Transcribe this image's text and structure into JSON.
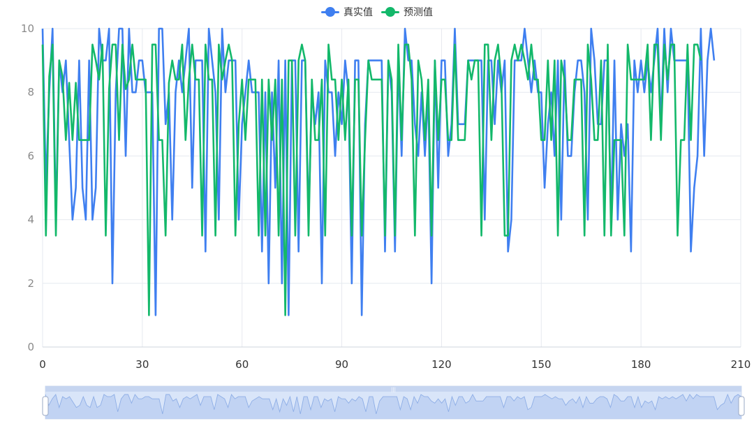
{
  "colors": {
    "actual": "#3f7ff0",
    "predicted": "#13b86a",
    "grid": "#e6e9ef",
    "axis_text": "#8a8a8a"
  },
  "legend": [
    {
      "label": "真实值",
      "color": "#3f7ff0"
    },
    {
      "label": "预测值",
      "color": "#13b86a"
    }
  ],
  "chart_data": {
    "type": "line",
    "xlim": [
      0,
      210
    ],
    "ylim": [
      0,
      10
    ],
    "xticks": [
      0,
      30,
      60,
      90,
      120,
      150,
      180,
      210
    ],
    "yticks": [
      0,
      2,
      4,
      6,
      8,
      10
    ],
    "grid": true,
    "legend_position": "top-center",
    "datazoom": {
      "start": 0,
      "end": 100
    },
    "series": [
      {
        "name": "真实值",
        "values": [
          10,
          5,
          8,
          10,
          4,
          9,
          8,
          9,
          6.5,
          4,
          5,
          9,
          5,
          4,
          9,
          4,
          5,
          10,
          9,
          9,
          10,
          2,
          8,
          10,
          10,
          6,
          10,
          8,
          8,
          9,
          9,
          8,
          8,
          8,
          1,
          10,
          10,
          7,
          8,
          4,
          8,
          9,
          8,
          9,
          10,
          5,
          9,
          9,
          9,
          3,
          10,
          9,
          8,
          4,
          10,
          8,
          9,
          9,
          9,
          4,
          7,
          8,
          9,
          8,
          8,
          8,
          3,
          8,
          2,
          8,
          5,
          9,
          2,
          9,
          1,
          9,
          9,
          3,
          9,
          9,
          4,
          8,
          7,
          8,
          2,
          9,
          8,
          8,
          6,
          8,
          7,
          9,
          8,
          2,
          9,
          9,
          1,
          7,
          9,
          9,
          9,
          9,
          9,
          3,
          9,
          8,
          3,
          9,
          6,
          10,
          9,
          9,
          7,
          6,
          8,
          6,
          8,
          2,
          9,
          5,
          9,
          9,
          6,
          7,
          10,
          7,
          7,
          7,
          9,
          9,
          9,
          9,
          9,
          4,
          9,
          9,
          7,
          9,
          8,
          9,
          3,
          4,
          9,
          9,
          9,
          10,
          9,
          8,
          9,
          8,
          8,
          5,
          7,
          8,
          6,
          9,
          4,
          9,
          6,
          6,
          8,
          9,
          9,
          8,
          4,
          10,
          9,
          7,
          7,
          9,
          9,
          4,
          9,
          4,
          7,
          6,
          7,
          3,
          9,
          8,
          9,
          8,
          9,
          8,
          9,
          10,
          7,
          10,
          8,
          10,
          9,
          9,
          9,
          9,
          9,
          3,
          5,
          6,
          10,
          6,
          9,
          10,
          9
        ],
        "color": "#3f7ff0"
      },
      {
        "name": "预测值",
        "values": [
          9.5,
          3.5,
          8.5,
          9.5,
          3.5,
          9,
          8.5,
          6.5,
          8.3,
          6.5,
          8.3,
          6.5,
          6.5,
          6.5,
          6.5,
          9.5,
          9,
          8.4,
          9.5,
          3.5,
          8.1,
          9.5,
          9.5,
          6.5,
          9.5,
          8.1,
          8.4,
          9.5,
          8.4,
          8.4,
          8.4,
          8.4,
          1,
          9.5,
          9.5,
          6.5,
          6.5,
          3.5,
          8.3,
          9,
          8.4,
          8.4,
          9.5,
          6.5,
          8.4,
          9.5,
          8.4,
          8.4,
          3.5,
          9.5,
          8.4,
          8.4,
          3.5,
          9.5,
          8.4,
          9,
          9.5,
          9,
          3.5,
          7,
          8.4,
          6.5,
          8.4,
          8.4,
          8.4,
          3.5,
          8.4,
          3.5,
          8.4,
          6.5,
          8.4,
          3.5,
          8.4,
          1,
          9,
          9,
          3.5,
          9,
          9.5,
          9,
          3.5,
          8.4,
          6.5,
          6.5,
          8.4,
          3.5,
          9.5,
          8.4,
          8.4,
          6.5,
          8.4,
          6.5,
          8.4,
          3.5,
          8.4,
          8.4,
          3.5,
          6.5,
          9,
          8.4,
          8.4,
          8.4,
          8.4,
          3.5,
          9,
          8.4,
          3.5,
          9.5,
          6.5,
          9.5,
          9.5,
          8.4,
          3.5,
          9,
          8.4,
          6.5,
          8.4,
          3.5,
          9,
          6.5,
          8.4,
          8.4,
          6.5,
          6.5,
          9.5,
          6.5,
          6.5,
          6.5,
          9,
          8.4,
          9,
          9,
          3.5,
          9.5,
          9.5,
          6.5,
          9,
          9.5,
          8.4,
          3.5,
          3.5,
          9,
          9.5,
          9,
          9.5,
          9,
          8.4,
          9.5,
          8.4,
          8.4,
          6.5,
          6.5,
          9,
          6.5,
          9,
          3.5,
          9,
          8.4,
          6.5,
          6.5,
          8.4,
          8.4,
          8.4,
          3.5,
          9.5,
          8.4,
          6.5,
          6.5,
          9,
          3.5,
          9.5,
          3.5,
          6.5,
          6.5,
          6.5,
          3.5,
          9.5,
          8.4,
          8.4,
          8.4,
          8.4,
          8.4,
          9.5,
          6.5,
          9.5,
          9.5,
          6.5,
          9.5,
          8.4,
          9.5,
          9.5,
          3.5,
          6.5,
          6.5,
          9.5,
          6.5,
          9.5,
          9.5,
          9
        ],
        "color": "#13b86a"
      }
    ]
  }
}
